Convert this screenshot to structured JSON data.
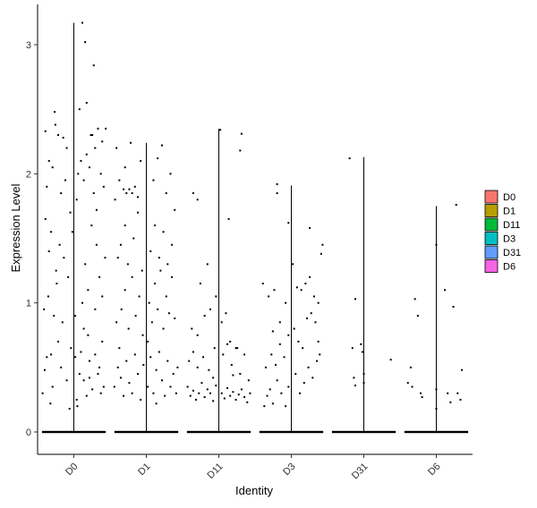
{
  "chart_data": {
    "type": "violin",
    "xlabel": "Identity",
    "ylabel": "Expression Level",
    "ylim": [
      -0.18,
      3.3
    ],
    "yticks": [
      0,
      1,
      2,
      3
    ],
    "categories": [
      "D0",
      "D1",
      "D11",
      "D3",
      "D31",
      "D6"
    ],
    "colors": [
      "#F8766D",
      "#B79F00",
      "#00BA38",
      "#00BFC4",
      "#619CFF",
      "#F564E3"
    ],
    "max": [
      3.17,
      2.24,
      2.35,
      1.91,
      2.13,
      1.75
    ],
    "legend": {
      "placement": "right",
      "entries": [
        "D0",
        "D1",
        "D11",
        "D3",
        "D31",
        "D6"
      ]
    },
    "grid": false,
    "points": {
      "D0": [
        [
          -0.44,
          0.3
        ],
        [
          -0.41,
          0.48
        ],
        [
          -0.38,
          0.58
        ],
        [
          -0.33,
          0.22
        ],
        [
          -0.3,
          0.35
        ],
        [
          -0.42,
          0.95
        ],
        [
          -0.36,
          1.05
        ],
        [
          -0.28,
          0.9
        ],
        [
          -0.22,
          0.7
        ],
        [
          -0.18,
          0.5
        ],
        [
          -0.35,
          1.4
        ],
        [
          -0.32,
          1.55
        ],
        [
          -0.25,
          1.25
        ],
        [
          -0.4,
          1.65
        ],
        [
          -0.2,
          1.45
        ],
        [
          -0.38,
          1.9
        ],
        [
          -0.3,
          2.05
        ],
        [
          -0.22,
          2.3
        ],
        [
          -0.4,
          2.33
        ],
        [
          -0.35,
          2.1
        ],
        [
          -0.15,
          2.28
        ],
        [
          -0.27,
          2.48
        ],
        [
          -0.1,
          2.2
        ],
        [
          -0.05,
          1.7
        ],
        [
          -0.12,
          1.95
        ],
        [
          -0.16,
          0.85
        ],
        [
          -0.08,
          1.2
        ],
        [
          -0.04,
          0.65
        ],
        [
          0.02,
          0.9
        ],
        [
          0.05,
          0.2
        ],
        [
          0.08,
          0.45
        ],
        [
          0.1,
          0.62
        ],
        [
          0.14,
          0.4
        ],
        [
          0.18,
          0.28
        ],
        [
          0.22,
          0.55
        ],
        [
          0.26,
          0.33
        ],
        [
          0.3,
          0.6
        ],
        [
          0.34,
          0.45
        ],
        [
          0.38,
          0.3
        ],
        [
          0.4,
          0.7
        ],
        [
          0.12,
          1.0
        ],
        [
          0.16,
          1.3
        ],
        [
          0.2,
          1.1
        ],
        [
          0.25,
          1.6
        ],
        [
          0.28,
          1.85
        ],
        [
          0.32,
          1.45
        ],
        [
          0.36,
          1.2
        ],
        [
          0.4,
          1.05
        ],
        [
          0.44,
          1.35
        ],
        [
          0.06,
          2.0
        ],
        [
          0.1,
          2.1
        ],
        [
          0.14,
          1.95
        ],
        [
          0.18,
          2.15
        ],
        [
          0.22,
          2.05
        ],
        [
          0.26,
          2.3
        ],
        [
          0.3,
          2.2
        ],
        [
          0.34,
          2.35
        ],
        [
          0.38,
          2.0
        ],
        [
          0.42,
          1.9
        ],
        [
          0.45,
          2.35
        ],
        [
          0.08,
          2.5
        ],
        [
          0.18,
          2.55
        ],
        [
          0.24,
          2.3
        ],
        [
          0.12,
          3.17
        ],
        [
          0.16,
          3.02
        ],
        [
          0.28,
          2.84
        ],
        [
          -0.02,
          1.55
        ],
        [
          0.04,
          1.8
        ],
        [
          -0.24,
          1.15
        ],
        [
          -0.14,
          1.35
        ],
        [
          0.2,
          0.75
        ],
        [
          0.3,
          0.95
        ],
        [
          -0.32,
          0.6
        ],
        [
          0.36,
          0.5
        ],
        [
          0.42,
          0.35
        ],
        [
          0.04,
          0.25
        ],
        [
          -0.1,
          0.4
        ],
        [
          -0.06,
          0.18
        ],
        [
          0.22,
          0.42
        ],
        [
          0.14,
          0.8
        ],
        [
          -0.18,
          1.85
        ],
        [
          0.32,
          1.72
        ],
        [
          0.4,
          2.25
        ],
        [
          -0.26,
          2.38
        ],
        [
          0.02,
          0.58
        ]
      ],
      "D1": [
        [
          -0.45,
          0.35
        ],
        [
          -0.4,
          0.5
        ],
        [
          -0.36,
          0.42
        ],
        [
          -0.32,
          0.28
        ],
        [
          -0.28,
          0.55
        ],
        [
          -0.24,
          0.38
        ],
        [
          -0.2,
          0.3
        ],
        [
          -0.16,
          0.6
        ],
        [
          -0.12,
          0.45
        ],
        [
          -0.08,
          0.25
        ],
        [
          -0.04,
          0.52
        ],
        [
          0.02,
          0.35
        ],
        [
          0.06,
          0.58
        ],
        [
          0.1,
          0.3
        ],
        [
          0.14,
          0.48
        ],
        [
          0.18,
          0.62
        ],
        [
          0.22,
          0.4
        ],
        [
          0.26,
          0.28
        ],
        [
          0.3,
          0.55
        ],
        [
          0.34,
          0.35
        ],
        [
          0.38,
          0.45
        ],
        [
          0.42,
          0.3
        ],
        [
          -0.42,
          0.85
        ],
        [
          -0.35,
          0.95
        ],
        [
          -0.3,
          1.1
        ],
        [
          -0.25,
          0.8
        ],
        [
          -0.2,
          1.2
        ],
        [
          -0.15,
          0.9
        ],
        [
          -0.1,
          1.05
        ],
        [
          -0.05,
          0.75
        ],
        [
          0.04,
          1.0
        ],
        [
          0.08,
          0.85
        ],
        [
          0.12,
          1.15
        ],
        [
          0.16,
          0.95
        ],
        [
          0.2,
          1.25
        ],
        [
          0.24,
          0.8
        ],
        [
          0.28,
          1.05
        ],
        [
          0.32,
          0.92
        ],
        [
          0.36,
          1.2
        ],
        [
          0.4,
          0.88
        ],
        [
          -0.4,
          1.35
        ],
        [
          -0.36,
          1.45
        ],
        [
          -0.3,
          1.6
        ],
        [
          -0.26,
          1.3
        ],
        [
          -0.18,
          1.5
        ],
        [
          -0.12,
          1.7
        ],
        [
          0.06,
          1.4
        ],
        [
          0.12,
          1.6
        ],
        [
          0.18,
          1.35
        ],
        [
          0.24,
          1.55
        ],
        [
          0.3,
          1.3
        ],
        [
          0.36,
          1.45
        ],
        [
          -0.44,
          1.8
        ],
        [
          -0.38,
          1.95
        ],
        [
          -0.32,
          1.88
        ],
        [
          -0.28,
          1.85
        ],
        [
          -0.24,
          1.88
        ],
        [
          -0.2,
          1.85
        ],
        [
          -0.16,
          1.9
        ],
        [
          -0.12,
          1.82
        ],
        [
          -0.42,
          2.2
        ],
        [
          -0.3,
          2.05
        ],
        [
          -0.22,
          2.24
        ],
        [
          -0.08,
          2.1
        ],
        [
          0.1,
          1.95
        ],
        [
          0.16,
          2.12
        ],
        [
          0.22,
          2.22
        ],
        [
          0.28,
          1.85
        ],
        [
          0.34,
          2.0
        ],
        [
          0.4,
          1.72
        ],
        [
          -0.06,
          1.25
        ],
        [
          0.02,
          0.7
        ],
        [
          -0.38,
          0.65
        ],
        [
          0.44,
          0.5
        ],
        [
          0.14,
          0.22
        ]
      ],
      "D11": [
        [
          -0.44,
          0.35
        ],
        [
          -0.4,
          0.28
        ],
        [
          -0.36,
          0.32
        ],
        [
          -0.32,
          0.25
        ],
        [
          -0.28,
          0.3
        ],
        [
          -0.24,
          0.38
        ],
        [
          -0.2,
          0.27
        ],
        [
          -0.16,
          0.33
        ],
        [
          -0.12,
          0.3
        ],
        [
          -0.08,
          0.24
        ],
        [
          -0.04,
          0.36
        ],
        [
          0.04,
          0.3
        ],
        [
          0.08,
          0.26
        ],
        [
          0.12,
          0.34
        ],
        [
          0.16,
          0.28
        ],
        [
          0.2,
          0.31
        ],
        [
          0.24,
          0.25
        ],
        [
          0.28,
          0.29
        ],
        [
          0.32,
          0.33
        ],
        [
          0.36,
          0.27
        ],
        [
          0.4,
          0.23
        ],
        [
          0.44,
          0.3
        ],
        [
          -0.42,
          0.55
        ],
        [
          -0.36,
          0.62
        ],
        [
          -0.3,
          0.5
        ],
        [
          -0.22,
          0.58
        ],
        [
          -0.14,
          0.48
        ],
        [
          -0.06,
          0.65
        ],
        [
          0.06,
          0.6
        ],
        [
          0.12,
          0.68
        ],
        [
          0.18,
          0.52
        ],
        [
          0.24,
          0.65
        ],
        [
          0.3,
          0.45
        ],
        [
          0.36,
          0.6
        ],
        [
          0.42,
          0.4
        ],
        [
          -0.38,
          0.8
        ],
        [
          -0.3,
          0.75
        ],
        [
          -0.2,
          0.9
        ],
        [
          -0.12,
          0.95
        ],
        [
          -0.04,
          1.05
        ],
        [
          0.04,
          0.85
        ],
        [
          0.1,
          0.92
        ],
        [
          0.16,
          0.7
        ],
        [
          -0.26,
          1.15
        ],
        [
          -0.16,
          1.3
        ],
        [
          -0.36,
          1.85
        ],
        [
          -0.3,
          1.8
        ],
        [
          0.14,
          1.65
        ],
        [
          0.02,
          2.34
        ],
        [
          0.32,
          2.31
        ],
        [
          0.3,
          2.18
        ],
        [
          0.26,
          0.65
        ],
        [
          -0.08,
          0.42
        ],
        [
          0.2,
          0.44
        ]
      ],
      "D3": [
        [
          -0.38,
          0.2
        ],
        [
          -0.34,
          0.28
        ],
        [
          -0.3,
          0.33
        ],
        [
          -0.26,
          0.22
        ],
        [
          -0.2,
          0.4
        ],
        [
          -0.14,
          0.3
        ],
        [
          -0.08,
          0.2
        ],
        [
          -0.04,
          0.35
        ],
        [
          0.06,
          0.45
        ],
        [
          0.12,
          0.3
        ],
        [
          0.18,
          0.38
        ],
        [
          0.24,
          0.5
        ],
        [
          0.3,
          0.42
        ],
        [
          0.36,
          0.55
        ],
        [
          0.4,
          0.6
        ],
        [
          -0.36,
          0.5
        ],
        [
          -0.28,
          0.6
        ],
        [
          -0.22,
          0.52
        ],
        [
          -0.16,
          0.68
        ],
        [
          -0.1,
          0.58
        ],
        [
          -0.04,
          0.75
        ],
        [
          0.04,
          0.8
        ],
        [
          0.1,
          0.7
        ],
        [
          0.16,
          0.65
        ],
        [
          0.22,
          0.88
        ],
        [
          0.28,
          0.92
        ],
        [
          0.34,
          0.85
        ],
        [
          0.38,
          0.7
        ],
        [
          -0.4,
          1.15
        ],
        [
          -0.32,
          1.05
        ],
        [
          -0.24,
          1.1
        ],
        [
          -0.16,
          0.85
        ],
        [
          -0.08,
          1.0
        ],
        [
          0.02,
          1.3
        ],
        [
          0.08,
          1.12
        ],
        [
          0.14,
          1.1
        ],
        [
          0.2,
          1.15
        ],
        [
          0.26,
          1.2
        ],
        [
          0.32,
          1.05
        ],
        [
          0.38,
          1.0
        ],
        [
          0.42,
          1.38
        ],
        [
          0.44,
          1.45
        ],
        [
          -0.2,
          1.85
        ],
        [
          -0.04,
          1.62
        ],
        [
          0.26,
          1.58
        ],
        [
          -0.2,
          1.92
        ],
        [
          -0.26,
          0.78
        ]
      ],
      "D31": [
        [
          -0.2,
          2.12
        ],
        [
          -0.12,
          1.03
        ],
        [
          -0.16,
          0.65
        ],
        [
          -0.04,
          0.68
        ],
        [
          -0.02,
          0.62
        ],
        [
          0.0,
          0.38
        ],
        [
          0.0,
          0.45
        ],
        [
          -0.14,
          0.42
        ],
        [
          -0.12,
          0.36
        ],
        [
          0.38,
          0.56
        ]
      ],
      "D6": [
        [
          -0.4,
          0.38
        ],
        [
          -0.36,
          0.5
        ],
        [
          -0.34,
          0.35
        ],
        [
          -0.3,
          1.03
        ],
        [
          -0.26,
          0.9
        ],
        [
          -0.22,
          0.3
        ],
        [
          -0.2,
          0.27
        ],
        [
          0.0,
          1.45
        ],
        [
          0.0,
          0.33
        ],
        [
          0.0,
          0.18
        ],
        [
          0.12,
          1.1
        ],
        [
          0.16,
          0.3
        ],
        [
          0.2,
          0.23
        ],
        [
          0.24,
          0.97
        ],
        [
          0.28,
          1.76
        ],
        [
          0.3,
          0.3
        ],
        [
          0.34,
          0.25
        ],
        [
          0.36,
          0.48
        ]
      ]
    }
  }
}
